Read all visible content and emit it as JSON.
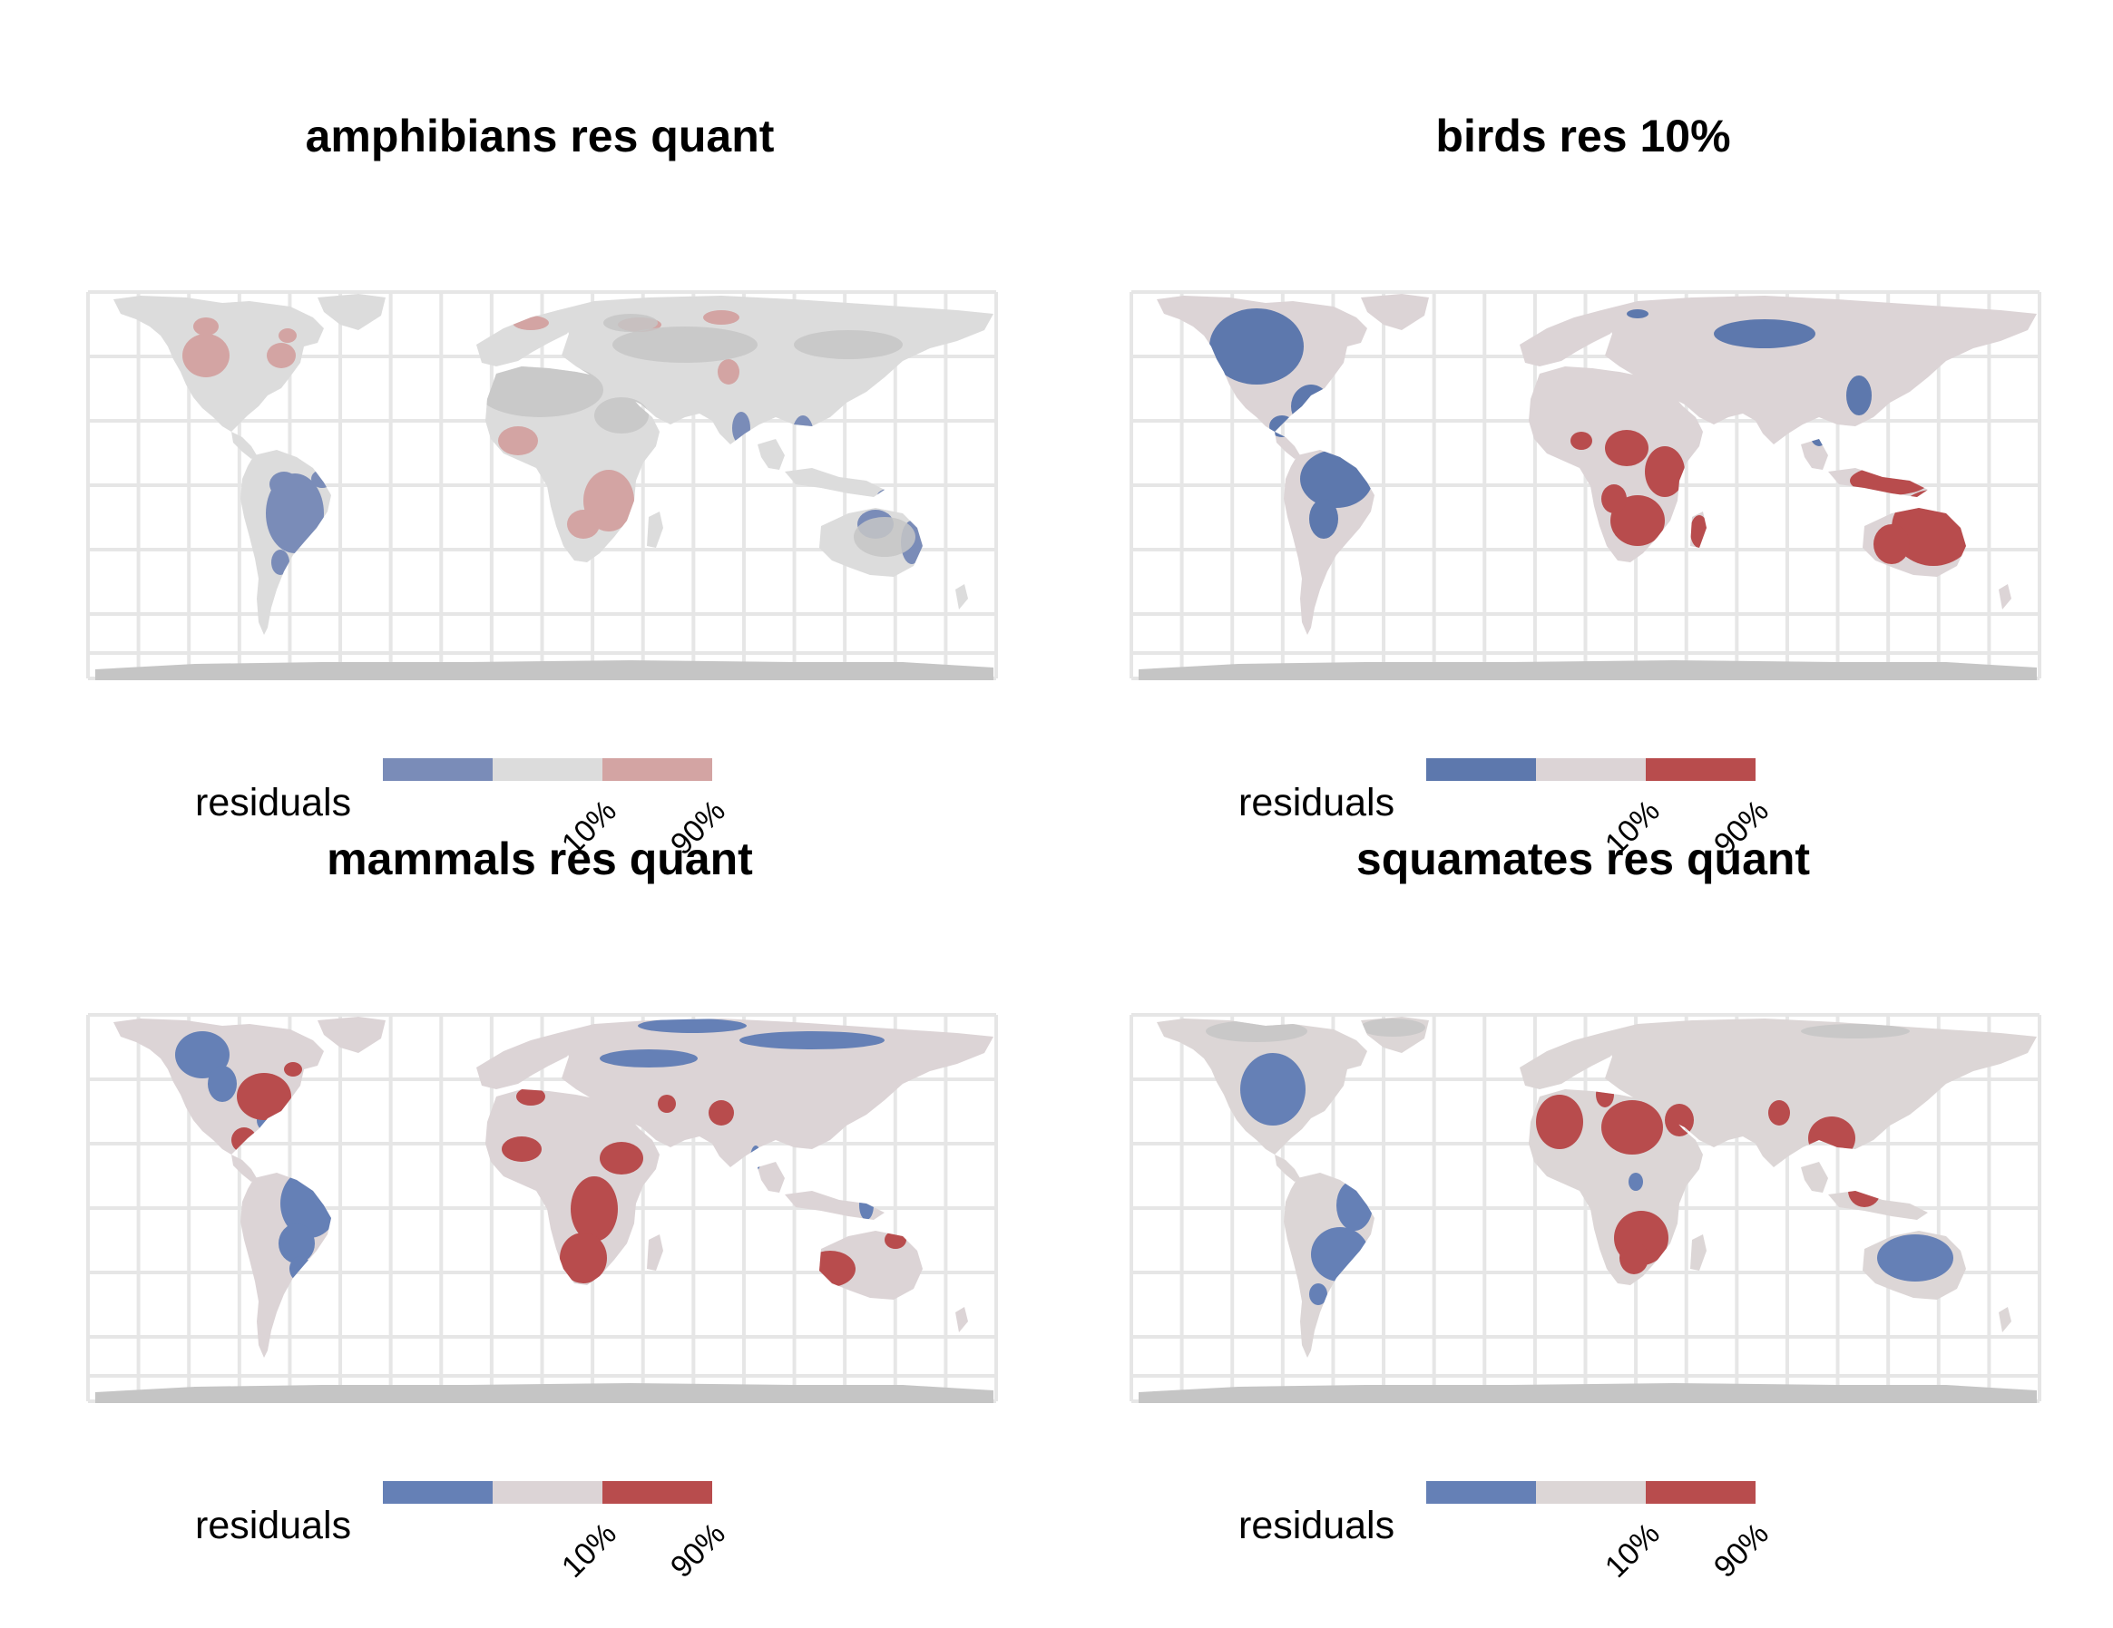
{
  "legend": {
    "title": "residuals",
    "ticks": [
      "10%",
      "90%"
    ]
  },
  "colors": {
    "grid": "#e6e6e6",
    "no_data": "#c5c5c5"
  },
  "panels": [
    {
      "title": "amphibians res quant",
      "colors": {
        "low": "#7a8cb8",
        "mid": "#dcdcdc",
        "high": "#d3a4a3"
      }
    },
    {
      "title": "birds res 10%",
      "colors": {
        "low": "#5d78ad",
        "mid": "#dcd4d6",
        "high": "#b84c4d"
      }
    },
    {
      "title": "mammals res quant",
      "colors": {
        "low": "#6580b6",
        "mid": "#dcd4d6",
        "high": "#b84c4d"
      }
    },
    {
      "title": "squamates res quant",
      "colors": {
        "low": "#6580b6",
        "mid": "#dcd6d6",
        "high": "#b84c4d"
      }
    }
  ]
}
